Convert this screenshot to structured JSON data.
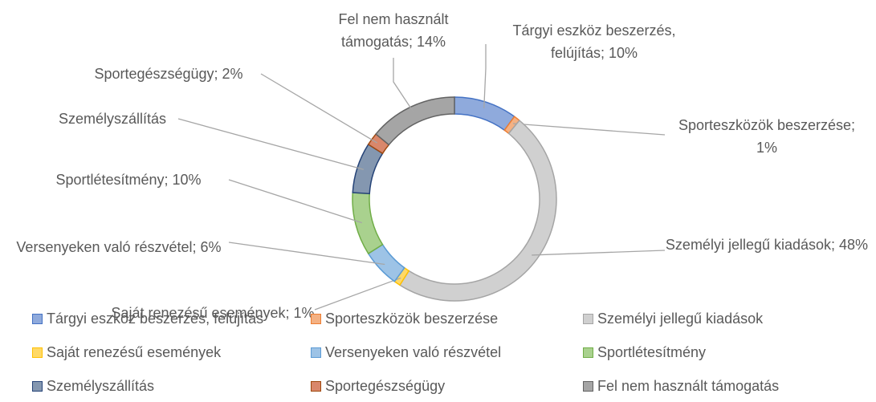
{
  "chart_data": {
    "type": "doughnut",
    "categories": [
      "Tárgyi eszköz beszerzés, felújítás",
      "Sporteszközök beszerzése",
      "Személyi jellegű kiadások",
      "Saját renezésű események",
      "Versenyeken való részvétel",
      "Sportlétesítmény",
      "Személyszállítás",
      "Sportegészségügy",
      "Fel nem használt támogatás"
    ],
    "values": [
      10,
      1,
      48,
      1,
      6,
      10,
      8,
      2,
      14
    ],
    "value_labels": [
      "Tárgyi eszköz beszerzés, felújítás; 10%",
      "Sporteszközök beszerzése; 1%",
      "Személyi jellegű kiadások; 48%",
      "Saját renezésű események; 1%",
      "Versenyeken való részvétel; 6%",
      "Sportlétesítmény; 10%",
      "Személyszállítás",
      "Sportegészségügy; 2%",
      "Fel nem használt támogatás; 14%"
    ],
    "colors": [
      "#8faadc",
      "#f4b183",
      "#d0d0d0",
      "#ffd966",
      "#9dc3e6",
      "#a9d18e",
      "#8497b0",
      "#d9876b",
      "#a5a5a5"
    ],
    "border_colors": [
      "#4472c4",
      "#ed7d31",
      "#a5a5a5",
      "#ffc000",
      "#5b9bd5",
      "#70ad47",
      "#264478",
      "#9e480e",
      "#636363"
    ],
    "legend": "bottom"
  }
}
